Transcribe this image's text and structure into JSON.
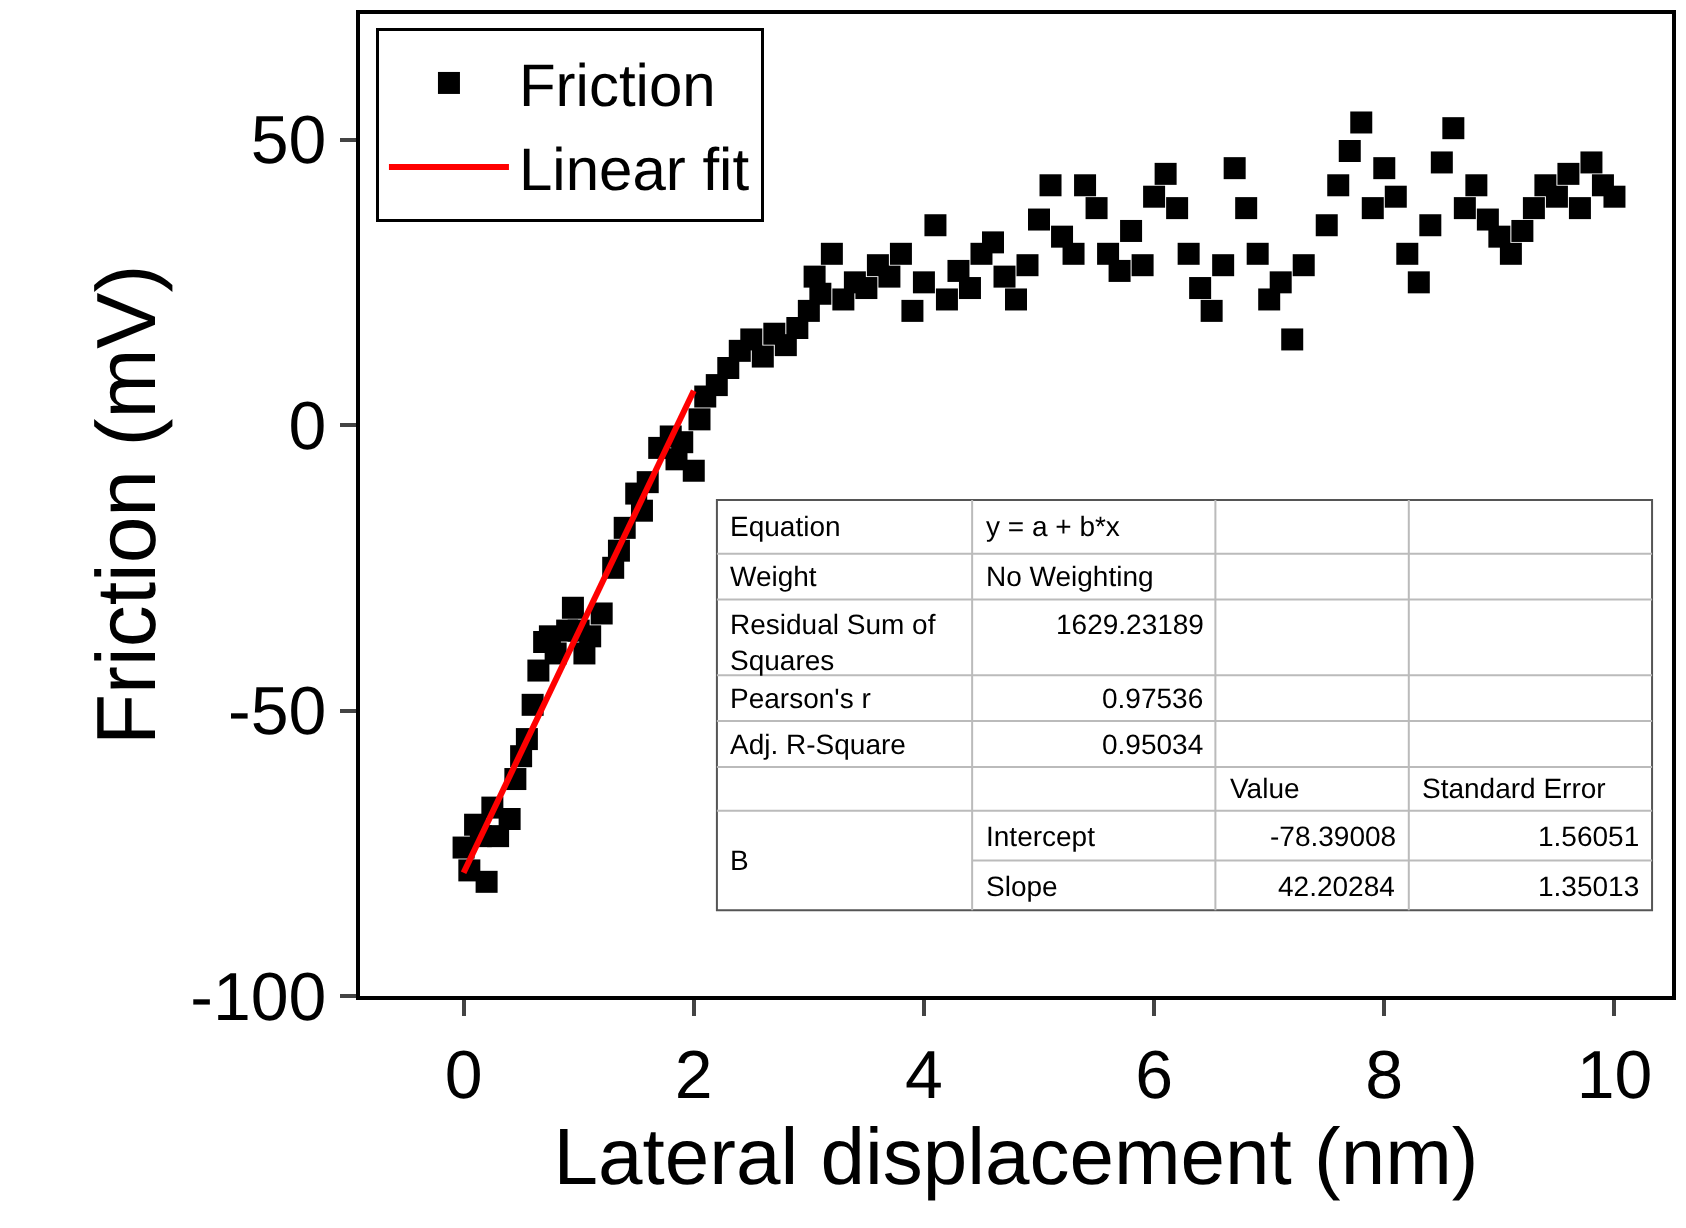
{
  "chart_data": {
    "type": "scatter",
    "xlabel": "Lateral displacement (nm)",
    "ylabel": "Friction (mV)",
    "xlim": [
      -0.9,
      10.5
    ],
    "xticks": [
      0,
      2,
      4,
      6,
      8,
      10
    ],
    "ylim": [
      -100,
      72
    ],
    "yticks": [
      -100,
      -50,
      0,
      50
    ],
    "legend": "top left",
    "series": [
      {
        "name": "Friction",
        "marker": "square",
        "color": "#000000",
        "x": [
          0,
          0.05,
          0.1,
          0.15,
          0.2,
          0.25,
          0.3,
          0.4,
          0.45,
          0.5,
          0.55,
          0.6,
          0.65,
          0.7,
          0.75,
          0.8,
          0.9,
          0.95,
          1.0,
          1.05,
          1.1,
          1.2,
          1.3,
          1.35,
          1.4,
          1.5,
          1.55,
          1.6,
          1.7,
          1.8,
          1.85,
          1.9,
          2.0,
          2.05,
          2.1,
          2.2,
          2.3,
          2.4,
          2.5,
          2.6,
          2.7,
          2.8,
          2.9,
          3.0,
          3.05,
          3.1,
          3.2,
          3.3,
          3.4,
          3.5,
          3.6,
          3.7,
          3.8,
          3.9,
          4.0,
          4.1,
          4.2,
          4.3,
          4.4,
          4.5,
          4.6,
          4.7,
          4.8,
          4.9,
          5.0,
          5.1,
          5.2,
          5.3,
          5.4,
          5.5,
          5.6,
          5.7,
          5.8,
          5.9,
          6.0,
          6.1,
          6.2,
          6.3,
          6.4,
          6.5,
          6.6,
          6.7,
          6.8,
          6.9,
          7.0,
          7.1,
          7.2,
          7.3,
          7.5,
          7.6,
          7.7,
          7.8,
          7.9,
          8.0,
          8.1,
          8.2,
          8.3,
          8.4,
          8.5,
          8.6,
          8.7,
          8.8,
          8.9,
          9.0,
          9.1,
          9.2,
          9.3,
          9.4,
          9.5,
          9.6,
          9.7,
          9.8,
          9.9,
          10.0
        ],
        "values": [
          -74,
          -78,
          -70,
          -72,
          -80,
          -67,
          -72,
          -69,
          -62,
          -58,
          -55,
          -49,
          -43,
          -38,
          -37,
          -40,
          -36,
          -32,
          -36,
          -40,
          -37,
          -33,
          -25,
          -22,
          -18,
          -12,
          -15,
          -10,
          -4,
          -2,
          -6,
          -3,
          -8,
          1,
          5,
          7,
          10,
          13,
          15,
          12,
          16,
          14,
          17,
          20,
          26,
          23,
          30,
          22,
          25,
          24,
          28,
          26,
          30,
          20,
          25,
          35,
          22,
          27,
          24,
          30,
          32,
          26,
          22,
          28,
          36,
          42,
          33,
          30,
          42,
          38,
          30,
          27,
          34,
          28,
          40,
          44,
          38,
          30,
          24,
          20,
          28,
          45,
          38,
          30,
          22,
          25,
          15,
          28,
          35,
          42,
          48,
          53,
          38,
          45,
          40,
          30,
          25,
          35,
          46,
          52,
          38,
          42,
          36,
          33,
          30,
          34,
          38,
          42,
          40,
          44,
          38,
          46,
          42,
          40
        ]
      },
      {
        "name": "Linear fit",
        "type": "line",
        "color": "#ff0000",
        "marker": "none",
        "line_style": "solid",
        "x": [
          0,
          2
        ],
        "values": [
          -78.4,
          6.0
        ]
      }
    ],
    "annotations": [
      "Equation",
      "y = a + b*x",
      "Weight",
      "No Weighting",
      "Residual Sum of Squares",
      "1629.23189",
      "Pearson's r",
      "0.97536",
      "Adj. R-Square",
      "0.95034",
      "Value",
      "Standard Error",
      "B",
      "Intercept",
      "-78.39008",
      "1.56051",
      "Slope",
      "42.20284",
      "1.35013"
    ]
  }
}
